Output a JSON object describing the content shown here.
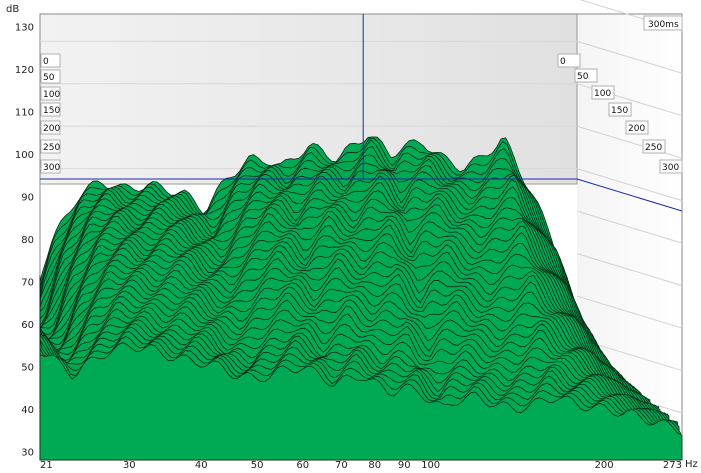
{
  "chart_data": {
    "type": "area",
    "title": "",
    "y_unit": "dB",
    "x_unit": "Hz",
    "xlim": [
      21,
      273
    ],
    "ylim": [
      28,
      133
    ],
    "x_scale": "log",
    "x_ticks": [
      {
        "v": 21,
        "label": "21"
      },
      {
        "v": 30,
        "label": "30"
      },
      {
        "v": 40,
        "label": "40"
      },
      {
        "v": 50,
        "label": "50"
      },
      {
        "v": 60,
        "label": "60"
      },
      {
        "v": 70,
        "label": "70"
      },
      {
        "v": 80,
        "label": "80"
      },
      {
        "v": 90,
        "label": "90"
      },
      {
        "v": 100,
        "label": "100"
      },
      {
        "v": 200,
        "label": "200"
      },
      {
        "v": 273,
        "label": "273"
      }
    ],
    "y_ticks": [
      {
        "v": 30,
        "label": "30"
      },
      {
        "v": 40,
        "label": "40"
      },
      {
        "v": 50,
        "label": "50"
      },
      {
        "v": 60,
        "label": "60"
      },
      {
        "v": 70,
        "label": "70"
      },
      {
        "v": 80,
        "label": "80"
      },
      {
        "v": 90,
        "label": "90"
      },
      {
        "v": 100,
        "label": "100"
      },
      {
        "v": 110,
        "label": "110"
      },
      {
        "v": 120,
        "label": "120"
      },
      {
        "v": 130,
        "label": "130"
      }
    ],
    "time_axis_title": "300ms",
    "time_labels": [
      "0",
      "50",
      "100",
      "150",
      "200",
      "250",
      "300"
    ],
    "cursor": {
      "freq": 77,
      "level": 94
    },
    "colors": {
      "fill": "#00aa55",
      "edge": "#0b2a14",
      "cursor": "#1a2aa8",
      "back": "#ebebeb"
    },
    "series": [
      {
        "time_ms": 0,
        "freq": [
          21,
          22,
          24,
          25,
          27,
          30,
          33,
          36,
          40,
          43,
          46,
          50,
          55,
          60,
          64,
          68,
          72,
          76,
          80,
          85,
          90,
          96,
          100,
          105,
          110,
          120,
          130,
          140,
          150,
          165,
          180,
          200,
          220,
          245,
          273
        ],
        "level": [
          67,
          66,
          59,
          62,
          75,
          86,
          90,
          88,
          89,
          88,
          87,
          83,
          91,
          95,
          95,
          93,
          96,
          98,
          97,
          95,
          98,
          101,
          99,
          96,
          98,
          99,
          95,
          93,
          95,
          100,
          90,
          77,
          60,
          48,
          40
        ]
      },
      {
        "time_ms": 50,
        "freq": [
          21,
          22,
          24,
          25,
          27,
          30,
          33,
          36,
          40,
          43,
          46,
          50,
          55,
          60,
          64,
          68,
          72,
          76,
          80,
          85,
          90,
          96,
          100,
          105,
          110,
          120,
          130,
          140,
          150,
          165,
          180,
          200,
          220,
          245,
          273
        ],
        "level": [
          66,
          64,
          58,
          60,
          73,
          83,
          86,
          84,
          85,
          84,
          82,
          79,
          86,
          90,
          90,
          88,
          90,
          92,
          91,
          89,
          92,
          94,
          92,
          88,
          91,
          92,
          88,
          86,
          88,
          92,
          82,
          70,
          56,
          46,
          40
        ]
      },
      {
        "time_ms": 100,
        "freq": [
          21,
          22,
          24,
          25,
          27,
          30,
          33,
          36,
          40,
          43,
          46,
          50,
          55,
          60,
          64,
          68,
          72,
          76,
          80,
          85,
          90,
          96,
          100,
          105,
          110,
          120,
          130,
          140,
          150,
          165,
          180,
          200,
          220,
          245,
          273
        ],
        "level": [
          64,
          62,
          56,
          58,
          70,
          79,
          81,
          79,
          80,
          79,
          76,
          74,
          80,
          84,
          83,
          80,
          83,
          85,
          83,
          81,
          84,
          85,
          83,
          79,
          82,
          83,
          79,
          77,
          79,
          82,
          73,
          63,
          52,
          44,
          39
        ]
      },
      {
        "time_ms": 150,
        "freq": [
          21,
          22,
          24,
          25,
          27,
          30,
          33,
          36,
          40,
          43,
          46,
          50,
          55,
          60,
          64,
          68,
          72,
          76,
          80,
          85,
          90,
          96,
          100,
          105,
          110,
          120,
          130,
          140,
          150,
          165,
          180,
          200,
          220,
          245,
          273
        ],
        "level": [
          62,
          60,
          54,
          56,
          66,
          74,
          75,
          73,
          74,
          72,
          69,
          68,
          73,
          76,
          74,
          71,
          74,
          76,
          74,
          72,
          74,
          75,
          72,
          68,
          71,
          72,
          68,
          66,
          68,
          71,
          64,
          56,
          48,
          42,
          38
        ]
      },
      {
        "time_ms": 200,
        "freq": [
          21,
          22,
          24,
          25,
          27,
          30,
          33,
          36,
          40,
          43,
          46,
          50,
          55,
          60,
          64,
          68,
          72,
          76,
          80,
          85,
          90,
          96,
          100,
          105,
          110,
          120,
          130,
          140,
          150,
          165,
          180,
          200,
          220,
          245,
          273
        ],
        "level": [
          60,
          58,
          52,
          54,
          62,
          68,
          68,
          66,
          66,
          64,
          61,
          60,
          64,
          67,
          65,
          62,
          64,
          66,
          64,
          62,
          63,
          63,
          60,
          57,
          60,
          61,
          58,
          56,
          57,
          60,
          55,
          50,
          45,
          40,
          37
        ]
      },
      {
        "time_ms": 250,
        "freq": [
          21,
          22,
          24,
          25,
          27,
          30,
          33,
          36,
          40,
          43,
          46,
          50,
          55,
          60,
          64,
          68,
          72,
          76,
          80,
          85,
          90,
          96,
          100,
          105,
          110,
          120,
          130,
          140,
          150,
          165,
          180,
          200,
          220,
          245,
          273
        ],
        "level": [
          58,
          56,
          50,
          52,
          57,
          61,
          60,
          58,
          58,
          56,
          53,
          52,
          55,
          57,
          55,
          52,
          54,
          55,
          53,
          51,
          52,
          52,
          49,
          47,
          49,
          50,
          48,
          47,
          48,
          50,
          47,
          45,
          42,
          39,
          36
        ]
      },
      {
        "time_ms": 300,
        "freq": [
          21,
          22,
          24,
          25,
          27,
          30,
          33,
          36,
          40,
          43,
          46,
          50,
          55,
          60,
          64,
          68,
          72,
          76,
          80,
          85,
          90,
          96,
          100,
          105,
          110,
          120,
          130,
          140,
          150,
          165,
          180,
          200,
          220,
          245,
          273
        ],
        "level": [
          54,
          52,
          48,
          50,
          53,
          55,
          54,
          52,
          51,
          50,
          48,
          47,
          49,
          50,
          48,
          46,
          47,
          48,
          46,
          44,
          45,
          44,
          42,
          40,
          42,
          43,
          41,
          40,
          41,
          43,
          41,
          40,
          39,
          37,
          35
        ]
      }
    ]
  }
}
